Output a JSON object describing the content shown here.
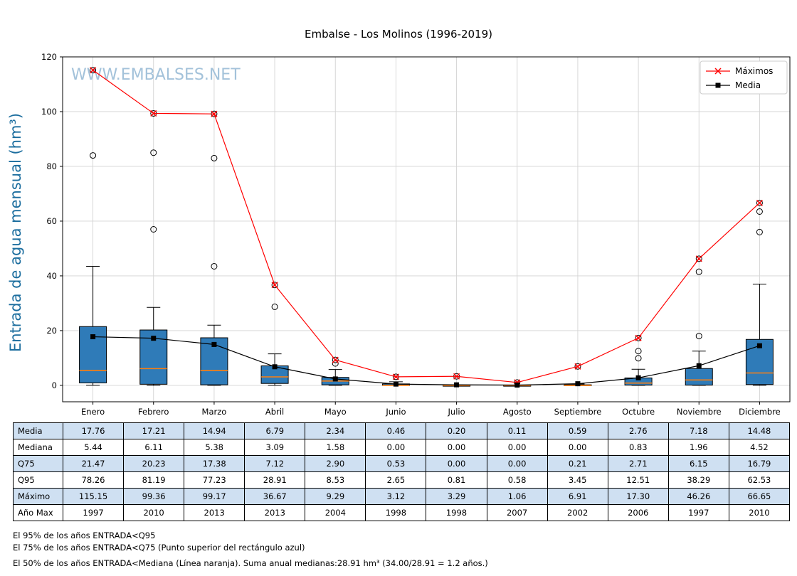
{
  "title": "Embalse - Los Molinos (1996-2019)",
  "watermark": "WWW.EMBALSES.NET",
  "ylabel": "Entrada de agua mensual (hm³)",
  "colors": {
    "box_fill": "#2f7bb8",
    "box_edge": "#000000",
    "median": "#ff7f0e",
    "maximos": "#ff0000",
    "media": "#000000",
    "grid": "#d3d3d3",
    "watermark": "#a3c2da",
    "ylabel": "#1b6d9e",
    "table_row_alt": "#cfe0f2",
    "legend_border": "#cccccc"
  },
  "chart_data": {
    "type": "boxplot+line",
    "title": "Embalse - Los Molinos (1996-2019)",
    "xlabel": "",
    "ylabel": "Entrada de agua mensual (hm³)",
    "grid": true,
    "legend_position": "top-right",
    "categories": [
      "Enero",
      "Febrero",
      "Marzo",
      "Abril",
      "Mayo",
      "Junio",
      "Julio",
      "Agosto",
      "Septiembre",
      "Octubre",
      "Noviembre",
      "Diciembre"
    ],
    "ylim": [
      -6,
      120
    ],
    "yticks": [
      0,
      20,
      40,
      60,
      80,
      100,
      120
    ],
    "series": [
      {
        "name": "Máximos",
        "color": "#ff0000",
        "marker": "x",
        "values": [
          115.15,
          99.36,
          99.17,
          36.67,
          9.29,
          3.12,
          3.29,
          1.06,
          6.91,
          17.3,
          46.26,
          66.65
        ]
      },
      {
        "name": "Media",
        "color": "#000000",
        "marker": "square",
        "values": [
          17.76,
          17.21,
          14.94,
          6.79,
          2.34,
          0.46,
          0.2,
          0.11,
          0.59,
          2.76,
          7.18,
          14.48
        ]
      }
    ],
    "boxes": [
      {
        "q1": 0.9,
        "median": 5.44,
        "q3": 21.47,
        "whisker_low": 0,
        "whisker_high": 43.5,
        "outliers": [
          84.0,
          115.15
        ]
      },
      {
        "q1": 0.4,
        "median": 6.11,
        "q3": 20.23,
        "whisker_low": 0,
        "whisker_high": 28.5,
        "outliers": [
          57.0,
          85.0,
          99.36
        ]
      },
      {
        "q1": 0.2,
        "median": 5.38,
        "q3": 17.38,
        "whisker_low": 0,
        "whisker_high": 22.0,
        "outliers": [
          43.5,
          83.0,
          99.17
        ]
      },
      {
        "q1": 0.7,
        "median": 3.09,
        "q3": 7.12,
        "whisker_low": 0,
        "whisker_high": 11.5,
        "outliers": [
          28.7,
          36.67
        ]
      },
      {
        "q1": 0.2,
        "median": 1.58,
        "q3": 2.9,
        "whisker_low": 0,
        "whisker_high": 5.8,
        "outliers": [
          8.0,
          9.29
        ]
      },
      {
        "q1": 0.0,
        "median": 0.0,
        "q3": 0.53,
        "whisker_low": 0,
        "whisker_high": 1.3,
        "outliers": [
          3.12
        ]
      },
      {
        "q1": 0.0,
        "median": 0.0,
        "q3": 0.0,
        "whisker_low": 0,
        "whisker_high": 0.0,
        "outliers": [
          3.29
        ]
      },
      {
        "q1": 0.0,
        "median": 0.0,
        "q3": 0.0,
        "whisker_low": 0,
        "whisker_high": 0.0,
        "outliers": [
          1.06
        ]
      },
      {
        "q1": 0.0,
        "median": 0.0,
        "q3": 0.21,
        "whisker_low": 0,
        "whisker_high": 0.5,
        "outliers": [
          6.91
        ]
      },
      {
        "q1": 0.1,
        "median": 0.83,
        "q3": 2.71,
        "whisker_low": 0,
        "whisker_high": 5.9,
        "outliers": [
          9.9,
          12.51,
          17.3
        ]
      },
      {
        "q1": 0.1,
        "median": 1.96,
        "q3": 6.15,
        "whisker_low": 0,
        "whisker_high": 12.5,
        "outliers": [
          18.0,
          41.5,
          46.26
        ]
      },
      {
        "q1": 0.3,
        "median": 4.52,
        "q3": 16.79,
        "whisker_low": 0,
        "whisker_high": 37.0,
        "outliers": [
          56.0,
          63.5,
          66.65
        ]
      }
    ]
  },
  "table": {
    "row_labels": [
      "Media",
      "Mediana",
      "Q75",
      "Q95",
      "Máximo",
      "Año Max"
    ],
    "columns": [
      "Enero",
      "Febrero",
      "Marzo",
      "Abril",
      "Mayo",
      "Junio",
      "Julio",
      "Agosto",
      "Septiembre",
      "Octubre",
      "Noviembre",
      "Diciembre"
    ],
    "rows": [
      [
        "17.76",
        "17.21",
        "14.94",
        "6.79",
        "2.34",
        "0.46",
        "0.20",
        "0.11",
        "0.59",
        "2.76",
        "7.18",
        "14.48"
      ],
      [
        "5.44",
        "6.11",
        "5.38",
        "3.09",
        "1.58",
        "0.00",
        "0.00",
        "0.00",
        "0.00",
        "0.83",
        "1.96",
        "4.52"
      ],
      [
        "21.47",
        "20.23",
        "17.38",
        "7.12",
        "2.90",
        "0.53",
        "0.00",
        "0.00",
        "0.21",
        "2.71",
        "6.15",
        "16.79"
      ],
      [
        "78.26",
        "81.19",
        "77.23",
        "28.91",
        "8.53",
        "2.65",
        "0.81",
        "0.58",
        "3.45",
        "12.51",
        "38.29",
        "62.53"
      ],
      [
        "115.15",
        "99.36",
        "99.17",
        "36.67",
        "9.29",
        "3.12",
        "3.29",
        "1.06",
        "6.91",
        "17.30",
        "46.26",
        "66.65"
      ],
      [
        "1997",
        "2010",
        "2013",
        "2013",
        "2004",
        "1998",
        "1998",
        "2007",
        "2002",
        "2006",
        "1997",
        "2010"
      ]
    ]
  },
  "footnotes": [
    "El 95% de los años ENTRADA<Q95",
    "El 75% de los años ENTRADA<Q75 (Punto superior del rectángulo azul)",
    "El 50% de los años ENTRADA<Mediana (Línea naranja). Suma anual medianas:28.91 hm³ (34.00/28.91 = 1.2 años.)"
  ]
}
